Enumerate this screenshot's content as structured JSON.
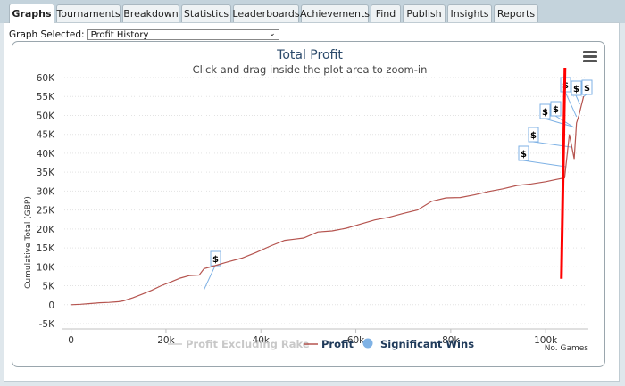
{
  "tabs": [
    {
      "label": "Graphs",
      "active": true
    },
    {
      "label": "Tournaments"
    },
    {
      "label": "Breakdown"
    },
    {
      "label": "Statistics"
    },
    {
      "label": "Leaderboards"
    },
    {
      "label": "Achievements"
    },
    {
      "label": "Find"
    },
    {
      "label": "Publish"
    },
    {
      "label": "Insights"
    },
    {
      "label": "Reports"
    }
  ],
  "graph_select": {
    "label": "Graph Selected:",
    "value": "Profit History"
  },
  "menu_icon": "hamburger-menu-icon",
  "colors": {
    "profit_line": "#b5544f",
    "excl_rake_line": "#cccccc",
    "marker_line": "#ff0000",
    "flag_border": "#7fb2e5",
    "sig_wins": "#7fb2e5"
  },
  "chart_data": {
    "type": "line",
    "title": "Total Profit",
    "subtitle": "Click and drag inside the plot area to zoom-in",
    "ylabel": "Cumulative Total (GBP)",
    "xlabel": "No. Games",
    "ylim": [
      -5000,
      60000
    ],
    "xlim": [
      -2000,
      109000
    ],
    "yticks": [
      {
        "v": -5000,
        "label": "-5K"
      },
      {
        "v": 0,
        "label": "0"
      },
      {
        "v": 5000,
        "label": "5K"
      },
      {
        "v": 10000,
        "label": "10K"
      },
      {
        "v": 15000,
        "label": "15K"
      },
      {
        "v": 20000,
        "label": "20K"
      },
      {
        "v": 25000,
        "label": "25K"
      },
      {
        "v": 30000,
        "label": "30K"
      },
      {
        "v": 35000,
        "label": "35K"
      },
      {
        "v": 40000,
        "label": "40K"
      },
      {
        "v": 45000,
        "label": "45K"
      },
      {
        "v": 50000,
        "label": "50K"
      },
      {
        "v": 55000,
        "label": "55K"
      },
      {
        "v": 60000,
        "label": "60K"
      }
    ],
    "xticks": [
      {
        "v": 0,
        "label": "0"
      },
      {
        "v": 20000,
        "label": "20k"
      },
      {
        "v": 40000,
        "label": "40k"
      },
      {
        "v": 60000,
        "label": "60k"
      },
      {
        "v": 80000,
        "label": "80k"
      },
      {
        "v": 100000,
        "label": "100k"
      }
    ],
    "grid": true,
    "legend_position": "bottom",
    "legend": [
      {
        "name": "Profit Excluding Rake",
        "kind": "line",
        "color": "#cccccc",
        "text_color": "#c8c8c8"
      },
      {
        "name": "Profit",
        "kind": "line",
        "color": "#b5544f",
        "text_color": "#1f3a5a"
      },
      {
        "name": "Significant Wins",
        "kind": "dot",
        "color": "#7fb2e5",
        "text_color": "#1f3a5a"
      }
    ],
    "series": [
      {
        "name": "Profit",
        "x": [
          0,
          2000,
          4000,
          6000,
          8000,
          10000,
          11000,
          13000,
          15000,
          17000,
          19000,
          21000,
          23000,
          25000,
          27000,
          28000,
          30000,
          33000,
          36000,
          39000,
          42000,
          45000,
          47000,
          49000,
          52000,
          55000,
          58000,
          61000,
          64000,
          67000,
          70000,
          73000,
          76000,
          79000,
          82000,
          85000,
          88000,
          91000,
          94000,
          97000,
          100000,
          102000,
          104000,
          105000,
          106000,
          106500,
          107000,
          107500,
          108000
        ],
        "y": [
          0,
          100,
          300,
          500,
          600,
          800,
          1000,
          1800,
          2800,
          3800,
          5000,
          6000,
          7000,
          7700,
          7800,
          9500,
          10200,
          11300,
          12300,
          13800,
          15500,
          17000,
          17300,
          17600,
          19200,
          19500,
          20200,
          21300,
          22400,
          23100,
          24100,
          25000,
          27300,
          28200,
          28300,
          29000,
          29900,
          30600,
          31500,
          31900,
          32500,
          33000,
          33500,
          45000,
          38500,
          48000,
          50000,
          52500,
          55000
        ]
      }
    ],
    "flags": [
      {
        "x": 28000,
        "y": 9500,
        "label": "$"
      },
      {
        "x": 104200,
        "y": 36000,
        "label": "$"
      },
      {
        "x": 105300,
        "y": 42000,
        "label": "$"
      },
      {
        "x": 105600,
        "y": 48000,
        "label": "$"
      },
      {
        "x": 106000,
        "y": 49000,
        "label": "$"
      },
      {
        "x": 106500,
        "y": 55000,
        "label": "$"
      },
      {
        "x": 107200,
        "y": 57000,
        "label": "$"
      },
      {
        "x": 107800,
        "y": 57500,
        "label": "$"
      }
    ],
    "marker_line": {
      "x": 103500,
      "y_from": 4000,
      "y_to": 64000
    }
  }
}
